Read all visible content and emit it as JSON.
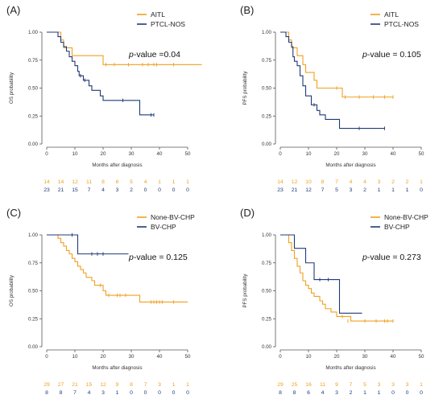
{
  "colors": {
    "orange": "#F0A020",
    "navy": "#1F3A78",
    "axis": "#555555"
  },
  "chart_data": [
    {
      "type": "line",
      "panel_label": "(A)",
      "ylabel": "OS probability",
      "xlabel": "Months after diagnosis",
      "xlim": [
        0,
        50
      ],
      "ylim": [
        0,
        1
      ],
      "x_ticks": [
        "0",
        "10",
        "20",
        "30",
        "40",
        "50"
      ],
      "y_ticks": [
        "0.00",
        "0.25",
        "0.50",
        "0.75",
        "1.00"
      ],
      "pvalue_label": "p",
      "pvalue_text": "-value =0.04",
      "series": [
        {
          "name": "AITL",
          "color": "orange",
          "steps": [
            [
              0,
              1.0
            ],
            [
              5,
              0.93
            ],
            [
              6,
              0.86
            ],
            [
              9,
              0.79
            ],
            [
              20,
              0.71
            ],
            [
              55,
              0.71
            ]
          ],
          "censor": [
            [
              21,
              0.71
            ],
            [
              24,
              0.71
            ],
            [
              29,
              0.71
            ],
            [
              34,
              0.71
            ],
            [
              36,
              0.71
            ],
            [
              38,
              0.71
            ],
            [
              39,
              0.71
            ],
            [
              45,
              0.71
            ]
          ]
        },
        {
          "name": "PTCL-NOS",
          "color": "navy",
          "steps": [
            [
              0,
              1.0
            ],
            [
              4,
              0.96
            ],
            [
              5,
              0.91
            ],
            [
              6,
              0.87
            ],
            [
              7,
              0.83
            ],
            [
              8,
              0.78
            ],
            [
              9,
              0.74
            ],
            [
              10,
              0.7
            ],
            [
              11,
              0.65
            ],
            [
              11.5,
              0.61
            ],
            [
              13,
              0.57
            ],
            [
              15,
              0.52
            ],
            [
              16,
              0.48
            ],
            [
              19,
              0.43
            ],
            [
              20,
              0.39
            ],
            [
              33,
              0.26
            ],
            [
              38,
              0.26
            ]
          ],
          "censor": [
            [
              12,
              0.61
            ],
            [
              13.5,
              0.57
            ],
            [
              27,
              0.39
            ],
            [
              37,
              0.26
            ],
            [
              38,
              0.26
            ]
          ]
        }
      ],
      "risk_rows": [
        {
          "color": "orange",
          "values": [
            "14",
            "14",
            "12",
            "11",
            "8",
            "6",
            "5",
            "4",
            "1",
            "1",
            "1"
          ]
        },
        {
          "color": "navy",
          "values": [
            "23",
            "21",
            "15",
            "7",
            "4",
            "3",
            "2",
            "0",
            "0",
            "0",
            "0"
          ]
        }
      ]
    },
    {
      "type": "line",
      "panel_label": "(B)",
      "ylabel": "PFS probability",
      "xlabel": "Months after diagnosis",
      "xlim": [
        0,
        50
      ],
      "ylim": [
        0,
        1
      ],
      "x_ticks": [
        "0",
        "10",
        "20",
        "30",
        "40",
        "50"
      ],
      "y_ticks": [
        "0.00",
        "0.25",
        "0.50",
        "0.75",
        "1.00"
      ],
      "pvalue_label": "p",
      "pvalue_text": "-value =  0.105",
      "series": [
        {
          "name": "AITL",
          "color": "orange",
          "steps": [
            [
              0,
              1.0
            ],
            [
              3,
              0.93
            ],
            [
              4,
              0.86
            ],
            [
              6,
              0.79
            ],
            [
              8,
              0.71
            ],
            [
              9,
              0.64
            ],
            [
              12,
              0.57
            ],
            [
              13,
              0.5
            ],
            [
              22,
              0.42
            ],
            [
              40,
              0.42
            ]
          ],
          "censor": [
            [
              20,
              0.5
            ],
            [
              23,
              0.42
            ],
            [
              28,
              0.42
            ],
            [
              33,
              0.42
            ],
            [
              37,
              0.42
            ],
            [
              40,
              0.42
            ]
          ]
        },
        {
          "name": "PTCL-NOS",
          "color": "navy",
          "steps": [
            [
              0,
              1.0
            ],
            [
              2,
              0.96
            ],
            [
              3,
              0.91
            ],
            [
              4,
              0.87
            ],
            [
              4.5,
              0.78
            ],
            [
              5,
              0.74
            ],
            [
              6,
              0.7
            ],
            [
              7,
              0.61
            ],
            [
              8,
              0.52
            ],
            [
              9,
              0.43
            ],
            [
              11,
              0.35
            ],
            [
              13,
              0.3
            ],
            [
              14,
              0.26
            ],
            [
              16,
              0.22
            ],
            [
              21,
              0.14
            ],
            [
              37,
              0.14
            ]
          ],
          "censor": [
            [
              12,
              0.35
            ],
            [
              28,
              0.14
            ],
            [
              37,
              0.14
            ]
          ]
        }
      ],
      "risk_rows": [
        {
          "color": "orange",
          "values": [
            "14",
            "12",
            "10",
            "8",
            "7",
            "4",
            "4",
            "3",
            "2",
            "2",
            "1"
          ]
        },
        {
          "color": "navy",
          "values": [
            "23",
            "21",
            "12",
            "7",
            "5",
            "3",
            "2",
            "1",
            "1",
            "1",
            "0"
          ]
        }
      ]
    },
    {
      "type": "line",
      "panel_label": "(C)",
      "ylabel": "OS probability",
      "xlabel": "Months after diagnosis",
      "xlim": [
        0,
        50
      ],
      "ylim": [
        0,
        1
      ],
      "x_ticks": [
        "0",
        "10",
        "20",
        "30",
        "40",
        "50"
      ],
      "y_ticks": [
        "0.00",
        "0.25",
        "0.50",
        "0.75",
        "1.00"
      ],
      "pvalue_label": "p",
      "pvalue_text": "-value =  0.125",
      "series": [
        {
          "name": "None-BV-CHP",
          "color": "orange",
          "steps": [
            [
              0,
              1.0
            ],
            [
              4,
              0.97
            ],
            [
              5,
              0.93
            ],
            [
              6,
              0.9
            ],
            [
              7,
              0.86
            ],
            [
              8,
              0.83
            ],
            [
              9,
              0.79
            ],
            [
              10,
              0.76
            ],
            [
              11,
              0.72
            ],
            [
              12,
              0.69
            ],
            [
              13,
              0.66
            ],
            [
              14,
              0.62
            ],
            [
              16,
              0.59
            ],
            [
              17,
              0.55
            ],
            [
              20,
              0.5
            ],
            [
              21,
              0.46
            ],
            [
              33,
              0.4
            ],
            [
              50,
              0.4
            ]
          ],
          "censor": [
            [
              19,
              0.55
            ],
            [
              22,
              0.46
            ],
            [
              25,
              0.46
            ],
            [
              26,
              0.46
            ],
            [
              28,
              0.46
            ],
            [
              37,
              0.4
            ],
            [
              38,
              0.4
            ],
            [
              39,
              0.4
            ],
            [
              40,
              0.4
            ],
            [
              41,
              0.4
            ],
            [
              45,
              0.4
            ]
          ]
        },
        {
          "name": "BV-CHP",
          "color": "navy",
          "steps": [
            [
              0,
              1.0
            ],
            [
              11,
              0.83
            ],
            [
              29,
              0.83
            ]
          ],
          "censor": [
            [
              9,
              1.0
            ],
            [
              16,
              0.83
            ],
            [
              18,
              0.83
            ],
            [
              20,
              0.83
            ]
          ]
        }
      ],
      "risk_rows": [
        {
          "color": "orange",
          "values": [
            "29",
            "27",
            "21",
            "15",
            "12",
            "9",
            "8",
            "7",
            "3",
            "1",
            "1"
          ]
        },
        {
          "color": "navy",
          "values": [
            "8",
            "8",
            "7",
            "4",
            "3",
            "1",
            "0",
            "0",
            "0",
            "0",
            "0"
          ]
        }
      ]
    },
    {
      "type": "line",
      "panel_label": "(D)",
      "ylabel": "PFS probability",
      "xlabel": "Months after diagnosis",
      "xlim": [
        0,
        50
      ],
      "ylim": [
        0,
        1
      ],
      "x_ticks": [
        "0",
        "10",
        "20",
        "30",
        "40",
        "50"
      ],
      "y_ticks": [
        "0.00",
        "0.25",
        "0.50",
        "0.75",
        "1.00"
      ],
      "pvalue_label": "p",
      "pvalue_text": "-value =  0.273",
      "series": [
        {
          "name": "None-BV-CHP",
          "color": "orange",
          "steps": [
            [
              0,
              1.0
            ],
            [
              3,
              0.93
            ],
            [
              4,
              0.86
            ],
            [
              5,
              0.79
            ],
            [
              6,
              0.72
            ],
            [
              7,
              0.66
            ],
            [
              8,
              0.59
            ],
            [
              9,
              0.55
            ],
            [
              10,
              0.52
            ],
            [
              11,
              0.48
            ],
            [
              12,
              0.45
            ],
            [
              14,
              0.41
            ],
            [
              15,
              0.38
            ],
            [
              16,
              0.34
            ],
            [
              18,
              0.31
            ],
            [
              20,
              0.27
            ],
            [
              25,
              0.23
            ],
            [
              40,
              0.23
            ]
          ],
          "censor": [
            [
              22,
              0.27
            ],
            [
              24,
              0.23
            ],
            [
              30,
              0.23
            ],
            [
              34,
              0.23
            ],
            [
              37,
              0.23
            ],
            [
              38,
              0.23
            ],
            [
              40,
              0.23
            ]
          ]
        },
        {
          "name": "BV-CHP",
          "color": "navy",
          "steps": [
            [
              0,
              1.0
            ],
            [
              5,
              0.88
            ],
            [
              9,
              0.75
            ],
            [
              12,
              0.6
            ],
            [
              21,
              0.3
            ],
            [
              29,
              0.3
            ]
          ],
          "censor": [
            [
              14,
              0.6
            ],
            [
              17,
              0.6
            ]
          ]
        }
      ],
      "risk_rows": [
        {
          "color": "orange",
          "values": [
            "29",
            "25",
            "16",
            "11",
            "9",
            "7",
            "5",
            "3",
            "3",
            "3",
            "1"
          ]
        },
        {
          "color": "navy",
          "values": [
            "8",
            "8",
            "6",
            "4",
            "3",
            "2",
            "1",
            "1",
            "0",
            "0",
            "0"
          ]
        }
      ]
    }
  ]
}
